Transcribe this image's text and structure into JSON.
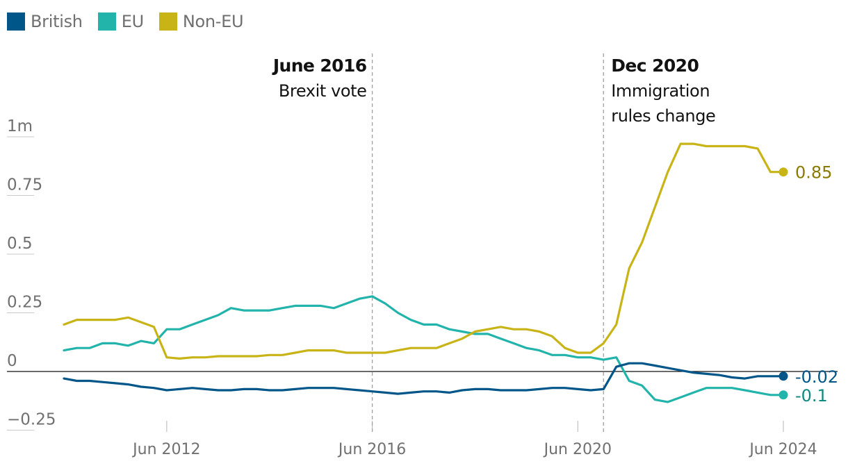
{
  "chart_data": {
    "type": "line",
    "ylim": [
      -0.3,
      1.05
    ],
    "y_ticks": [
      {
        "value": 1,
        "label": "1m"
      },
      {
        "value": 0.75,
        "label": "0.75"
      },
      {
        "value": 0.5,
        "label": "0.5"
      },
      {
        "value": 0.25,
        "label": "0.25"
      },
      {
        "value": 0,
        "label": "0"
      },
      {
        "value": -0.25,
        "label": "−0.25"
      }
    ],
    "x_ticks": [
      {
        "value": 2012.42,
        "label": "Jun 2012"
      },
      {
        "value": 2016.42,
        "label": "Jun 2016"
      },
      {
        "value": 2020.42,
        "label": "Jun 2020"
      },
      {
        "value": 2024.42,
        "label": "Jun 2024"
      }
    ],
    "annotations": [
      {
        "x": 2016.42,
        "title": "June 2016",
        "lines": [
          "Brexit vote"
        ],
        "anchor": "end"
      },
      {
        "x": 2020.92,
        "title": "Dec 2020",
        "lines": [
          "Immigration",
          "rules change"
        ],
        "anchor": "start"
      }
    ],
    "series": [
      {
        "name": "British",
        "color": "#005689",
        "end_label": "-0.02",
        "x": [
          2010.42,
          2010.67,
          2010.92,
          2011.17,
          2011.42,
          2011.67,
          2011.92,
          2012.17,
          2012.42,
          2012.67,
          2012.92,
          2013.17,
          2013.42,
          2013.67,
          2013.92,
          2014.17,
          2014.42,
          2014.67,
          2014.92,
          2015.17,
          2015.42,
          2015.67,
          2015.92,
          2016.17,
          2016.42,
          2016.67,
          2016.92,
          2017.17,
          2017.42,
          2017.67,
          2017.92,
          2018.17,
          2018.42,
          2018.67,
          2018.92,
          2019.17,
          2019.42,
          2019.67,
          2019.92,
          2020.17,
          2020.42,
          2020.67,
          2020.92,
          2021.17,
          2021.42,
          2021.67,
          2021.92,
          2022.17,
          2022.42,
          2022.67,
          2022.92,
          2023.17,
          2023.42,
          2023.67,
          2023.92,
          2024.17,
          2024.42
        ],
        "values": [
          -0.03,
          -0.04,
          -0.04,
          -0.045,
          -0.05,
          -0.055,
          -0.065,
          -0.07,
          -0.08,
          -0.075,
          -0.07,
          -0.075,
          -0.08,
          -0.08,
          -0.075,
          -0.075,
          -0.08,
          -0.08,
          -0.075,
          -0.07,
          -0.07,
          -0.07,
          -0.075,
          -0.08,
          -0.085,
          -0.09,
          -0.095,
          -0.09,
          -0.085,
          -0.085,
          -0.09,
          -0.08,
          -0.075,
          -0.075,
          -0.08,
          -0.08,
          -0.08,
          -0.075,
          -0.07,
          -0.07,
          -0.075,
          -0.08,
          -0.075,
          0.02,
          0.035,
          0.035,
          0.025,
          0.015,
          0.005,
          -0.005,
          -0.01,
          -0.015,
          -0.025,
          -0.03,
          -0.02,
          -0.02,
          -0.02
        ]
      },
      {
        "name": "EU",
        "color": "#22b3aa",
        "end_label": "-0.1",
        "x": [
          2010.42,
          2010.67,
          2010.92,
          2011.17,
          2011.42,
          2011.67,
          2011.92,
          2012.17,
          2012.42,
          2012.67,
          2012.92,
          2013.17,
          2013.42,
          2013.67,
          2013.92,
          2014.17,
          2014.42,
          2014.67,
          2014.92,
          2015.17,
          2015.42,
          2015.67,
          2015.92,
          2016.17,
          2016.42,
          2016.67,
          2016.92,
          2017.17,
          2017.42,
          2017.67,
          2017.92,
          2018.17,
          2018.42,
          2018.67,
          2018.92,
          2019.17,
          2019.42,
          2019.67,
          2019.92,
          2020.17,
          2020.42,
          2020.67,
          2020.92,
          2021.17,
          2021.42,
          2021.67,
          2021.92,
          2022.17,
          2022.42,
          2022.67,
          2022.92,
          2023.17,
          2023.42,
          2023.67,
          2023.92,
          2024.17,
          2024.42
        ],
        "values": [
          0.09,
          0.1,
          0.1,
          0.12,
          0.12,
          0.11,
          0.13,
          0.12,
          0.18,
          0.18,
          0.2,
          0.22,
          0.24,
          0.27,
          0.26,
          0.26,
          0.26,
          0.27,
          0.28,
          0.28,
          0.28,
          0.27,
          0.29,
          0.31,
          0.32,
          0.29,
          0.25,
          0.22,
          0.2,
          0.2,
          0.18,
          0.17,
          0.16,
          0.16,
          0.14,
          0.12,
          0.1,
          0.09,
          0.07,
          0.07,
          0.06,
          0.06,
          0.05,
          0.06,
          -0.04,
          -0.06,
          -0.12,
          -0.13,
          -0.11,
          -0.09,
          -0.07,
          -0.07,
          -0.07,
          -0.08,
          -0.09,
          -0.1,
          -0.1
        ]
      },
      {
        "name": "Non-EU",
        "color": "#c8b417",
        "end_label": "0.85",
        "x": [
          2010.42,
          2010.67,
          2010.92,
          2011.17,
          2011.42,
          2011.67,
          2011.92,
          2012.17,
          2012.42,
          2012.67,
          2012.92,
          2013.17,
          2013.42,
          2013.67,
          2013.92,
          2014.17,
          2014.42,
          2014.67,
          2014.92,
          2015.17,
          2015.42,
          2015.67,
          2015.92,
          2016.17,
          2016.42,
          2016.67,
          2016.92,
          2017.17,
          2017.42,
          2017.67,
          2017.92,
          2018.17,
          2018.42,
          2018.67,
          2018.92,
          2019.17,
          2019.42,
          2019.67,
          2019.92,
          2020.17,
          2020.42,
          2020.67,
          2020.92,
          2021.17,
          2021.42,
          2021.67,
          2021.92,
          2022.17,
          2022.42,
          2022.67,
          2022.92,
          2023.17,
          2023.42,
          2023.67,
          2023.92,
          2024.17,
          2024.42
        ],
        "values": [
          0.2,
          0.22,
          0.22,
          0.22,
          0.22,
          0.23,
          0.21,
          0.19,
          0.06,
          0.055,
          0.06,
          0.06,
          0.065,
          0.065,
          0.065,
          0.065,
          0.07,
          0.07,
          0.08,
          0.09,
          0.09,
          0.09,
          0.08,
          0.08,
          0.08,
          0.08,
          0.09,
          0.1,
          0.1,
          0.1,
          0.12,
          0.14,
          0.17,
          0.18,
          0.19,
          0.18,
          0.18,
          0.17,
          0.15,
          0.1,
          0.08,
          0.08,
          0.12,
          0.2,
          0.44,
          0.55,
          0.7,
          0.85,
          0.97,
          0.97,
          0.96,
          0.96,
          0.96,
          0.96,
          0.95,
          0.85,
          0.85
        ]
      }
    ]
  }
}
